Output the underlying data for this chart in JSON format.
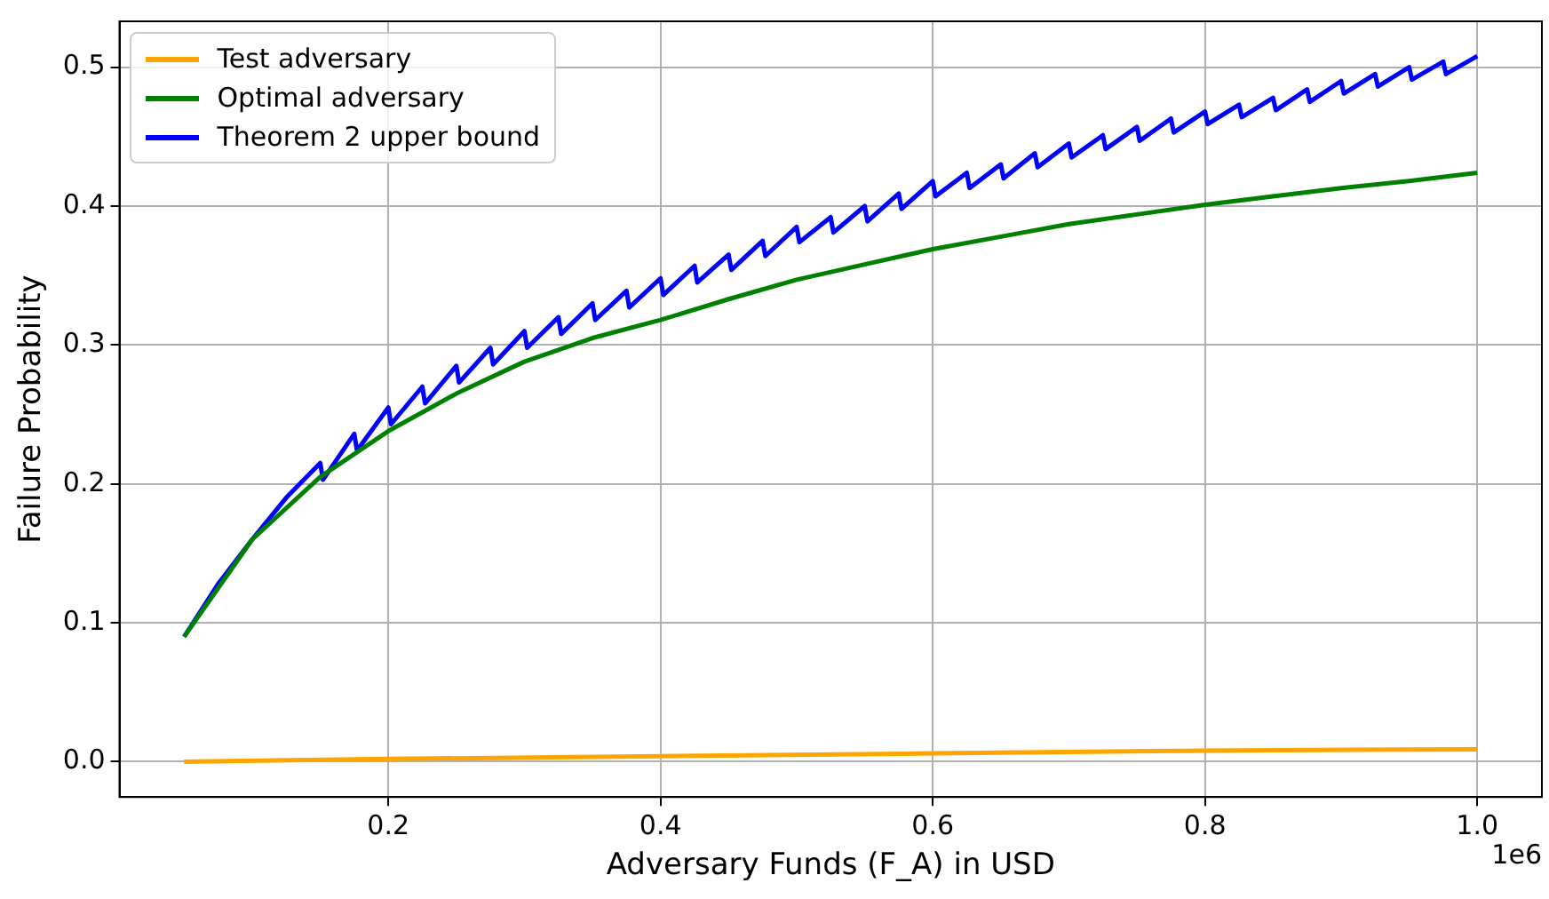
{
  "chart_data": {
    "type": "line",
    "xlabel": "Adversary Funds (F_A) in USD",
    "ylabel": "Failure Probability",
    "xlim": [
      0.0025,
      1.0475
    ],
    "xticks": [
      0.2,
      0.4,
      0.6,
      0.8,
      {
        "value": 1,
        "label": "1.0"
      }
    ],
    "ylim": [
      -0.0254,
      0.533
    ],
    "yticks": [
      {
        "value": 0,
        "label": "0.0"
      },
      0.1,
      0.2,
      0.3,
      0.4,
      0.5
    ],
    "grid": true,
    "legend": "top left",
    "marker": "none",
    "line_style": "solid",
    "annotations": [
      "1e6"
    ],
    "series": [
      {
        "name": "Test adversary",
        "color": "#ffa500",
        "x": [
          0.05,
          0.2,
          0.4,
          0.6,
          0.8,
          1.0
        ],
        "values": [
          0.0,
          0.002,
          0.004,
          0.006,
          0.008,
          0.009
        ]
      },
      {
        "name": "Optimal adversary",
        "color": "#008000",
        "x": [
          0.05,
          0.1,
          0.15,
          0.2,
          0.25,
          0.3,
          0.35,
          0.4,
          0.45,
          0.5,
          0.55,
          0.6,
          0.65,
          0.7,
          0.75,
          0.8,
          0.85,
          0.9,
          0.95,
          1.0
        ],
        "values": [
          0.09,
          0.16,
          0.205,
          0.238,
          0.265,
          0.288,
          0.305,
          0.318,
          0.333,
          0.347,
          0.358,
          0.369,
          0.378,
          0.387,
          0.394,
          0.401,
          0.407,
          0.413,
          0.418,
          0.424
        ]
      },
      {
        "name": "Theorem 2 upper bound",
        "color": "#0000ff",
        "x": [
          0.05,
          0.075,
          0.1,
          0.125,
          0.15,
          0.152,
          0.175,
          0.177,
          0.2,
          0.202,
          0.225,
          0.227,
          0.25,
          0.252,
          0.275,
          0.277,
          0.3,
          0.302,
          0.325,
          0.327,
          0.35,
          0.352,
          0.375,
          0.377,
          0.4,
          0.402,
          0.425,
          0.427,
          0.45,
          0.452,
          0.475,
          0.477,
          0.5,
          0.502,
          0.525,
          0.527,
          0.55,
          0.552,
          0.575,
          0.577,
          0.6,
          0.602,
          0.625,
          0.627,
          0.65,
          0.652,
          0.675,
          0.677,
          0.7,
          0.702,
          0.725,
          0.727,
          0.75,
          0.752,
          0.775,
          0.777,
          0.8,
          0.802,
          0.825,
          0.827,
          0.85,
          0.852,
          0.875,
          0.877,
          0.9,
          0.902,
          0.925,
          0.927,
          0.95,
          0.952,
          0.975,
          0.977,
          1.0
        ],
        "values": [
          0.09,
          0.128,
          0.16,
          0.19,
          0.215,
          0.203,
          0.236,
          0.224,
          0.255,
          0.243,
          0.27,
          0.258,
          0.285,
          0.273,
          0.298,
          0.286,
          0.31,
          0.298,
          0.32,
          0.308,
          0.33,
          0.318,
          0.339,
          0.327,
          0.348,
          0.336,
          0.357,
          0.345,
          0.365,
          0.354,
          0.375,
          0.364,
          0.385,
          0.374,
          0.392,
          0.381,
          0.4,
          0.389,
          0.409,
          0.398,
          0.418,
          0.407,
          0.424,
          0.413,
          0.43,
          0.42,
          0.438,
          0.428,
          0.445,
          0.435,
          0.451,
          0.441,
          0.457,
          0.447,
          0.463,
          0.453,
          0.468,
          0.459,
          0.473,
          0.464,
          0.478,
          0.469,
          0.484,
          0.475,
          0.49,
          0.481,
          0.495,
          0.486,
          0.5,
          0.491,
          0.504,
          0.495,
          0.508
        ]
      }
    ]
  }
}
